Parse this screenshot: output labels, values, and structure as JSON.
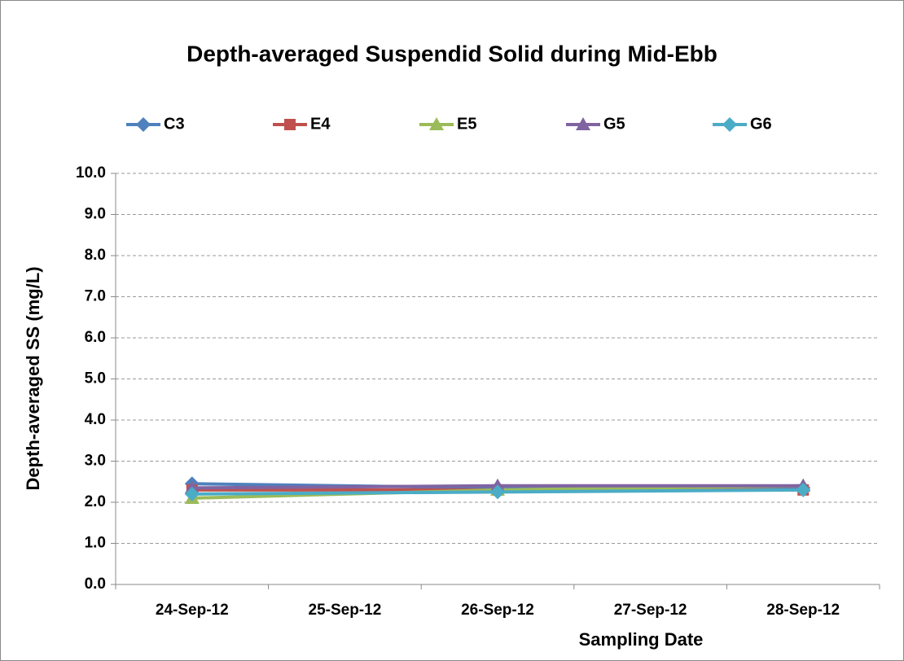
{
  "chart_data": {
    "type": "line",
    "title": "Depth-averaged Suspendid Solid during Mid-Ebb",
    "x_label": "Sampling Date",
    "y_label": "Depth-averaged SS (mg/L)",
    "xticks": [
      "24-Sep-12",
      "25-Sep-12",
      "26-Sep-12",
      "27-Sep-12",
      "28-Sep-12"
    ],
    "x": [
      "24-Sep-12",
      "26-Sep-12",
      "28-Sep-12"
    ],
    "series": [
      {
        "name": "C3",
        "color": "#4f81bd",
        "marker": "diamond",
        "values": [
          2.45,
          2.35,
          2.35
        ]
      },
      {
        "name": "E4",
        "color": "#c0504d",
        "marker": "square",
        "values": [
          2.3,
          2.3,
          2.3
        ]
      },
      {
        "name": "E5",
        "color": "#9bbb59",
        "marker": "triangle",
        "values": [
          2.1,
          2.3,
          2.4
        ]
      },
      {
        "name": "G5",
        "color": "#8064a2",
        "marker": "triangle",
        "values": [
          2.35,
          2.4,
          2.4
        ]
      },
      {
        "name": "G6",
        "color": "#4bacc6",
        "marker": "diamond",
        "values": [
          2.2,
          2.25,
          2.3
        ]
      }
    ],
    "ylim": [
      0,
      10
    ],
    "yticks": [
      {
        "value": 0,
        "label": "0.0"
      },
      {
        "value": 1,
        "label": "1.0"
      },
      {
        "value": 2,
        "label": "2.0"
      },
      {
        "value": 3,
        "label": "3.0"
      },
      {
        "value": 4,
        "label": "4.0"
      },
      {
        "value": 5,
        "label": "5.0"
      },
      {
        "value": 6,
        "label": "6.0"
      },
      {
        "value": 7,
        "label": "7.0"
      },
      {
        "value": 8,
        "label": "8.0"
      },
      {
        "value": 9,
        "label": "9.0"
      },
      {
        "value": 10,
        "label": "10.0"
      }
    ],
    "grid": true,
    "legend": "top"
  }
}
